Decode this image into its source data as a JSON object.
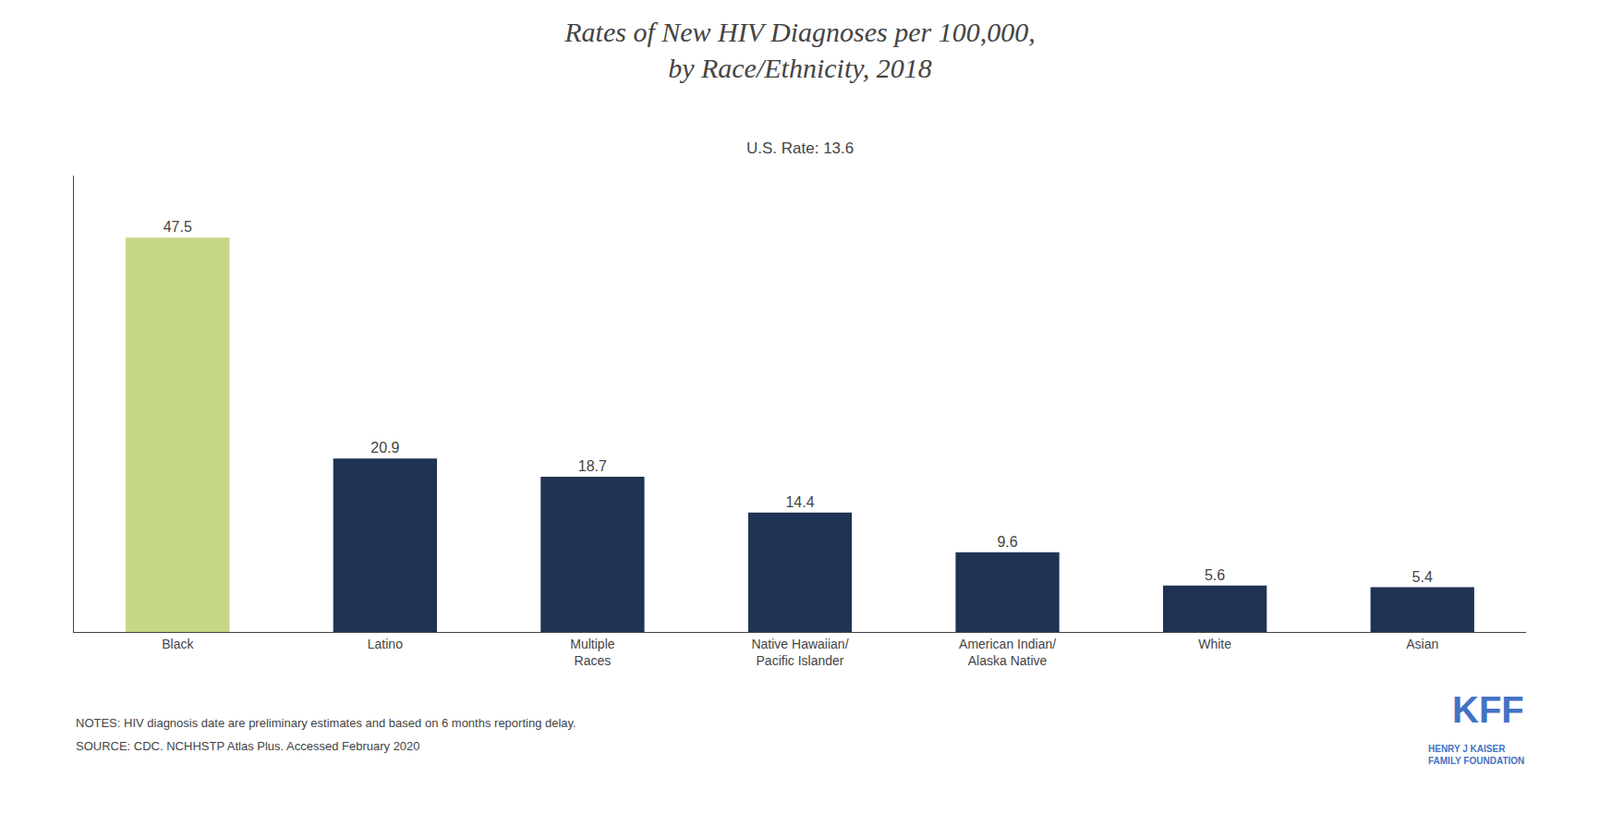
{
  "chart_data": {
    "type": "bar",
    "title": "Rates of New HIV Diagnoses per 100,000,\nby Race/Ethnicity, 2018",
    "subtitle": "U.S. Rate: 13.6",
    "categories": [
      "Black",
      "Latino",
      "Multiple\nRaces",
      "Native Hawaiian/\nPacific Islander",
      "American Indian/\nAlaska Native",
      "White",
      "Asian"
    ],
    "values": [
      47.5,
      20.9,
      18.7,
      14.4,
      9.6,
      5.6,
      5.4
    ],
    "colors": [
      "#c5d686",
      "#1f3354",
      "#1f3354",
      "#1f3354",
      "#1f3354",
      "#1f3354",
      "#1f3354"
    ],
    "ylim": [
      0,
      55
    ],
    "grid": false,
    "data_labels": true,
    "tick_labels": "x",
    "annotations": [
      "NOTES: HIV diagnosis date are preliminary estimates and based on 6 months reporting delay.",
      "SOURCE: CDC. NCHHSTP Atlas Plus. Accessed February 2020",
      "KFF",
      "HENRY J KAISER\nFAMILY FOUNDATION"
    ]
  }
}
